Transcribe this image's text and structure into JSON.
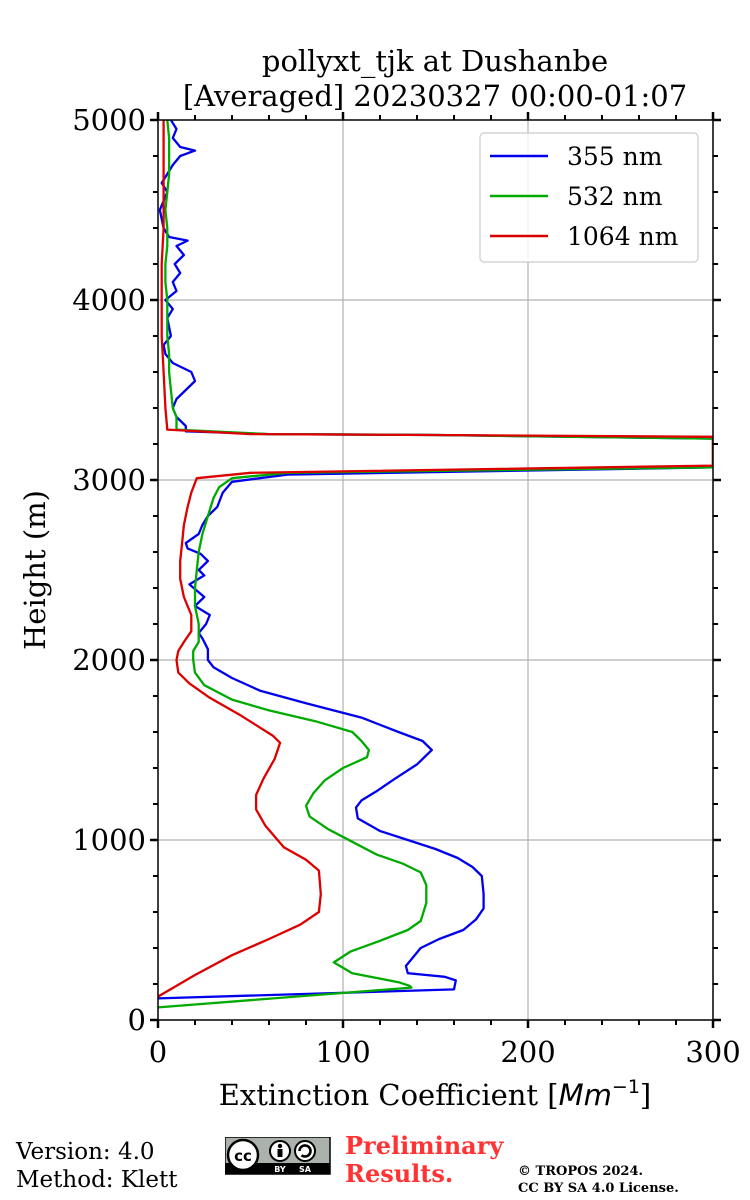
{
  "chart_data": {
    "type": "line",
    "title_line1": "pollyxt_tjk at Dushanbe",
    "title_line2": "[Averaged] 20230327 00:00-01:07",
    "xlabel_prefix": "Extinction Coefficient [",
    "xlabel_unit": "Mm",
    "xlabel_exp": "−1",
    "xlabel_suffix": "]",
    "ylabel": "Height (m)",
    "xlim": [
      0,
      300
    ],
    "ylim": [
      0,
      5000
    ],
    "xticks": [
      0,
      100,
      200,
      300
    ],
    "xtick_labels": [
      "0",
      "100",
      "200",
      "300"
    ],
    "yticks": [
      0,
      1000,
      2000,
      3000,
      4000,
      5000
    ],
    "ytick_labels": [
      "0",
      "1000",
      "2000",
      "3000",
      "4000",
      "5000"
    ],
    "grid": true,
    "legend_position": "top-right",
    "series": [
      {
        "name": "355 nm",
        "color": "#0000ee",
        "points": [
          [
            0,
            120
          ],
          [
            160,
            170
          ],
          [
            161,
            220
          ],
          [
            155,
            240
          ],
          [
            145,
            250
          ],
          [
            135,
            260
          ],
          [
            134,
            300
          ],
          [
            138,
            350
          ],
          [
            142,
            400
          ],
          [
            152,
            450
          ],
          [
            165,
            500
          ],
          [
            172,
            560
          ],
          [
            176,
            620
          ],
          [
            176,
            700
          ],
          [
            175,
            800
          ],
          [
            170,
            850
          ],
          [
            162,
            900
          ],
          [
            150,
            950
          ],
          [
            135,
            1000
          ],
          [
            120,
            1050
          ],
          [
            108,
            1120
          ],
          [
            107,
            1180
          ],
          [
            110,
            1220
          ],
          [
            118,
            1270
          ],
          [
            128,
            1340
          ],
          [
            140,
            1420
          ],
          [
            148,
            1500
          ],
          [
            143,
            1550
          ],
          [
            130,
            1600
          ],
          [
            110,
            1680
          ],
          [
            80,
            1760
          ],
          [
            55,
            1830
          ],
          [
            40,
            1900
          ],
          [
            30,
            1960
          ],
          [
            27,
            2000
          ],
          [
            27,
            2060
          ],
          [
            24,
            2120
          ],
          [
            22,
            2150
          ],
          [
            26,
            2200
          ],
          [
            28,
            2250
          ],
          [
            20,
            2300
          ],
          [
            25,
            2350
          ],
          [
            17,
            2420
          ],
          [
            25,
            2470
          ],
          [
            22,
            2500
          ],
          [
            27,
            2550
          ],
          [
            23,
            2590
          ],
          [
            16,
            2620
          ],
          [
            15,
            2650
          ],
          [
            22,
            2700
          ],
          [
            24,
            2750
          ],
          [
            27,
            2800
          ],
          [
            32,
            2850
          ],
          [
            35,
            2930
          ],
          [
            40,
            2990
          ],
          [
            70,
            3030
          ],
          [
            300,
            3070
          ],
          [
            300,
            3230
          ],
          [
            150,
            3250
          ],
          [
            60,
            3255
          ],
          [
            15,
            3270
          ],
          [
            15,
            3300
          ],
          [
            10,
            3350
          ],
          [
            8,
            3400
          ],
          [
            10,
            3450
          ],
          [
            15,
            3500
          ],
          [
            20,
            3550
          ],
          [
            18,
            3600
          ],
          [
            8,
            3650
          ],
          [
            4,
            3700
          ],
          [
            3,
            3750
          ],
          [
            7,
            3800
          ],
          [
            6,
            3850
          ],
          [
            5,
            3900
          ],
          [
            8,
            3950
          ],
          [
            4,
            4000
          ],
          [
            10,
            4050
          ],
          [
            8,
            4100
          ],
          [
            12,
            4150
          ],
          [
            9,
            4200
          ],
          [
            14,
            4250
          ],
          [
            10,
            4300
          ],
          [
            16,
            4330
          ],
          [
            6,
            4350
          ],
          [
            3,
            4400
          ],
          [
            2,
            4450
          ],
          [
            1,
            4500
          ],
          [
            3,
            4550
          ],
          [
            5,
            4600
          ],
          [
            2,
            4650
          ],
          [
            5,
            4700
          ],
          [
            8,
            4750
          ],
          [
            12,
            4800
          ],
          [
            20,
            4830
          ],
          [
            12,
            4850
          ],
          [
            8,
            4900
          ],
          [
            10,
            4950
          ],
          [
            7,
            5000
          ]
        ]
      },
      {
        "name": "532 nm",
        "color": "#00aa00",
        "points": [
          [
            0,
            70
          ],
          [
            137,
            180
          ],
          [
            136,
            190
          ],
          [
            130,
            210
          ],
          [
            120,
            230
          ],
          [
            105,
            260
          ],
          [
            95,
            320
          ],
          [
            104,
            380
          ],
          [
            120,
            440
          ],
          [
            135,
            500
          ],
          [
            142,
            550
          ],
          [
            145,
            650
          ],
          [
            145,
            750
          ],
          [
            142,
            820
          ],
          [
            132,
            870
          ],
          [
            118,
            920
          ],
          [
            105,
            990
          ],
          [
            92,
            1060
          ],
          [
            82,
            1130
          ],
          [
            80,
            1190
          ],
          [
            84,
            1260
          ],
          [
            90,
            1330
          ],
          [
            100,
            1400
          ],
          [
            113,
            1460
          ],
          [
            114,
            1500
          ],
          [
            110,
            1550
          ],
          [
            105,
            1600
          ],
          [
            85,
            1660
          ],
          [
            60,
            1720
          ],
          [
            40,
            1780
          ],
          [
            25,
            1860
          ],
          [
            20,
            1930
          ],
          [
            19,
            2000
          ],
          [
            19,
            2050
          ],
          [
            22,
            2100
          ],
          [
            22,
            2200
          ],
          [
            20,
            2300
          ],
          [
            20,
            2400
          ],
          [
            21,
            2500
          ],
          [
            22,
            2600
          ],
          [
            24,
            2700
          ],
          [
            27,
            2800
          ],
          [
            30,
            2900
          ],
          [
            33,
            2960
          ],
          [
            40,
            3010
          ],
          [
            70,
            3040
          ],
          [
            300,
            3070
          ],
          [
            300,
            3230
          ],
          [
            150,
            3250
          ],
          [
            60,
            3255
          ],
          [
            10,
            3280
          ],
          [
            10,
            3350
          ],
          [
            8,
            3400
          ],
          [
            7,
            3500
          ],
          [
            6,
            3600
          ],
          [
            6,
            3700
          ],
          [
            5,
            3800
          ],
          [
            5,
            3900
          ],
          [
            5,
            4000
          ],
          [
            4,
            4100
          ],
          [
            4,
            4200
          ],
          [
            5,
            4300
          ],
          [
            5,
            4400
          ],
          [
            4,
            4500
          ],
          [
            5,
            4600
          ],
          [
            6,
            4700
          ],
          [
            6,
            4800
          ],
          [
            6,
            4900
          ],
          [
            5,
            5000
          ]
        ]
      },
      {
        "name": "1064 nm",
        "color": "#dd0000",
        "points": [
          [
            0,
            130
          ],
          [
            20,
            250
          ],
          [
            40,
            360
          ],
          [
            60,
            450
          ],
          [
            77,
            530
          ],
          [
            87,
            600
          ],
          [
            88,
            700
          ],
          [
            87,
            830
          ],
          [
            80,
            890
          ],
          [
            68,
            960
          ],
          [
            58,
            1080
          ],
          [
            53,
            1170
          ],
          [
            53,
            1250
          ],
          [
            57,
            1340
          ],
          [
            63,
            1450
          ],
          [
            66,
            1540
          ],
          [
            62,
            1580
          ],
          [
            45,
            1690
          ],
          [
            28,
            1790
          ],
          [
            17,
            1870
          ],
          [
            11,
            1930
          ],
          [
            10,
            2000
          ],
          [
            11,
            2050
          ],
          [
            14,
            2100
          ],
          [
            18,
            2160
          ],
          [
            18,
            2250
          ],
          [
            14,
            2350
          ],
          [
            12,
            2450
          ],
          [
            12,
            2550
          ],
          [
            13,
            2650
          ],
          [
            14,
            2750
          ],
          [
            16,
            2850
          ],
          [
            18,
            2930
          ],
          [
            21,
            3010
          ],
          [
            50,
            3040
          ],
          [
            300,
            3080
          ],
          [
            300,
            3240
          ],
          [
            150,
            3250
          ],
          [
            50,
            3255
          ],
          [
            5,
            3280
          ],
          [
            4,
            3400
          ],
          [
            3,
            3600
          ],
          [
            2,
            3800
          ],
          [
            2,
            4000
          ],
          [
            2,
            4200
          ],
          [
            3,
            4400
          ],
          [
            3,
            4600
          ],
          [
            3,
            4800
          ],
          [
            3,
            5000
          ]
        ]
      }
    ]
  },
  "footer": {
    "version": "Version: 4.0",
    "method": "Method: Klett",
    "prelim_line1": "Preliminary",
    "prelim_line2": "Results.",
    "copyright_line1": "© TROPOS 2024.",
    "copyright_line2": "CC BY SA 4.0 License.",
    "license_by": "BY",
    "license_sa": "SA",
    "license_cc": "cc"
  }
}
